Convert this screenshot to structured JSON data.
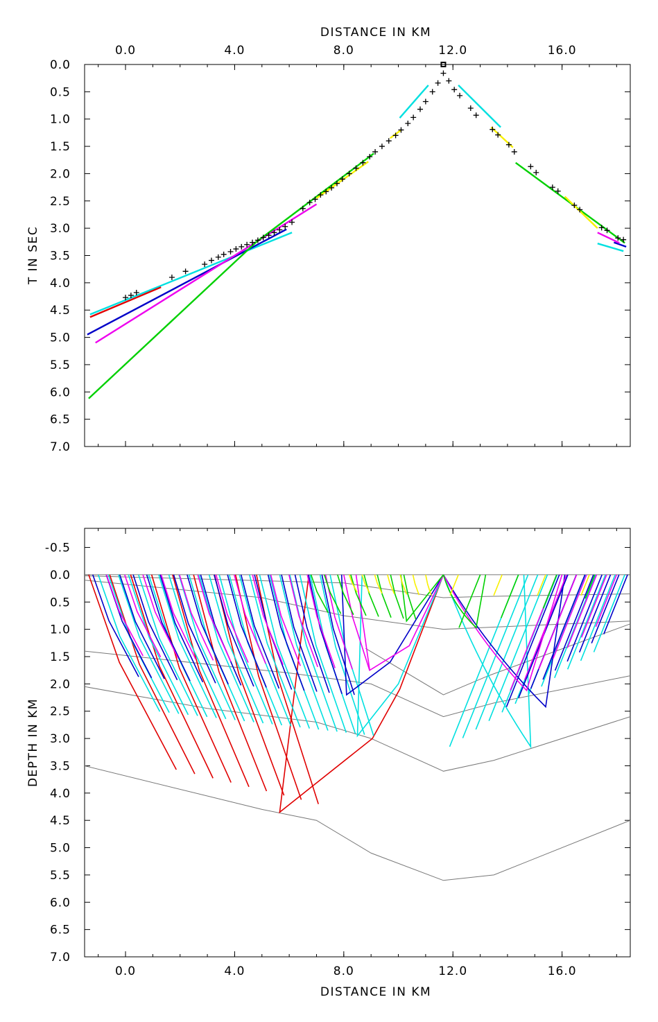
{
  "chart_data": [
    {
      "type": "scatter",
      "panel": "travel-time",
      "xlabel": "DISTANCE IN KM",
      "ylabel": "T IN SEC",
      "xlim": [
        -1.5,
        18.5
      ],
      "ylim": [
        7.0,
        0.0
      ],
      "x_axis_position": "top",
      "x_ticks": [
        "0.0",
        "4.0",
        "8.0",
        "12.0",
        "16.0"
      ],
      "y_ticks": [
        "0.0",
        "0.5",
        "1.0",
        "1.5",
        "2.0",
        "2.5",
        "3.0",
        "3.5",
        "4.0",
        "4.5",
        "5.0",
        "5.5",
        "6.0",
        "6.5",
        "7.0"
      ],
      "source_marker": {
        "x": 11.65,
        "y": 0.0
      },
      "picks": [
        [
          0.0,
          4.27
        ],
        [
          0.2,
          4.23
        ],
        [
          0.4,
          4.18
        ],
        [
          1.7,
          3.9
        ],
        [
          2.2,
          3.79
        ],
        [
          2.9,
          3.66
        ],
        [
          3.15,
          3.59
        ],
        [
          3.4,
          3.53
        ],
        [
          3.6,
          3.48
        ],
        [
          3.85,
          3.43
        ],
        [
          4.05,
          3.38
        ],
        [
          4.25,
          3.34
        ],
        [
          4.45,
          3.3
        ],
        [
          4.65,
          3.26
        ],
        [
          4.85,
          3.22
        ],
        [
          5.05,
          3.17
        ],
        [
          5.25,
          3.13
        ],
        [
          5.45,
          3.08
        ],
        [
          5.65,
          3.03
        ],
        [
          5.85,
          2.97
        ],
        [
          6.1,
          2.89
        ],
        [
          6.5,
          2.64
        ],
        [
          6.75,
          2.53
        ],
        [
          6.95,
          2.47
        ],
        [
          7.15,
          2.39
        ],
        [
          7.35,
          2.33
        ],
        [
          7.55,
          2.26
        ],
        [
          7.75,
          2.18
        ],
        [
          7.95,
          2.1
        ],
        [
          8.2,
          2.0
        ],
        [
          8.45,
          1.9
        ],
        [
          8.7,
          1.8
        ],
        [
          8.95,
          1.69
        ],
        [
          9.15,
          1.6
        ],
        [
          9.4,
          1.5
        ],
        [
          9.65,
          1.4
        ],
        [
          9.9,
          1.3
        ],
        [
          10.1,
          1.2
        ],
        [
          10.35,
          1.08
        ],
        [
          10.55,
          0.97
        ],
        [
          10.8,
          0.82
        ],
        [
          11.0,
          0.68
        ],
        [
          11.25,
          0.5
        ],
        [
          11.45,
          0.34
        ],
        [
          11.65,
          0.16
        ],
        [
          11.85,
          0.3
        ],
        [
          12.05,
          0.46
        ],
        [
          12.25,
          0.57
        ],
        [
          12.65,
          0.8
        ],
        [
          12.85,
          0.93
        ],
        [
          13.45,
          1.19
        ],
        [
          13.65,
          1.29
        ],
        [
          14.05,
          1.47
        ],
        [
          14.25,
          1.6
        ],
        [
          14.85,
          1.87
        ],
        [
          15.05,
          1.98
        ],
        [
          15.65,
          2.25
        ],
        [
          15.85,
          2.32
        ],
        [
          16.45,
          2.58
        ],
        [
          16.65,
          2.66
        ],
        [
          17.45,
          2.99
        ],
        [
          17.65,
          3.04
        ],
        [
          18.05,
          3.18
        ],
        [
          18.25,
          3.21
        ]
      ],
      "series": [
        {
          "color": "#00e0e0",
          "segments": [
            [
              [
                -1.3,
                4.58
              ],
              [
                6.1,
                3.08
              ]
            ],
            [
              [
                10.05,
                0.98
              ],
              [
                10.8,
                0.55
              ],
              [
                11.1,
                0.38
              ]
            ],
            [
              [
                12.2,
                0.38
              ],
              [
                13.75,
                1.15
              ]
            ],
            [
              [
                17.3,
                3.28
              ],
              [
                18.25,
                3.42
              ]
            ]
          ]
        },
        {
          "color": "#e00000",
          "segments": [
            [
              [
                -1.3,
                4.63
              ],
              [
                1.3,
                4.08
              ]
            ]
          ]
        },
        {
          "color": "#0000c8",
          "segments": [
            [
              [
                -1.4,
                4.95
              ],
              [
                5.9,
                3.02
              ]
            ],
            [
              [
                17.9,
                3.26
              ],
              [
                18.35,
                3.34
              ]
            ]
          ]
        },
        {
          "color": "#ee00ee",
          "segments": [
            [
              [
                -1.1,
                5.1
              ],
              [
                7.0,
                2.56
              ]
            ],
            [
              [
                17.3,
                3.08
              ],
              [
                18.1,
                3.27
              ]
            ]
          ]
        },
        {
          "color": "#00d000",
          "segments": [
            [
              [
                -1.35,
                6.12
              ],
              [
                4.8,
                3.25
              ],
              [
                9.1,
                1.63
              ]
            ],
            [
              [
                14.3,
                1.8
              ],
              [
                18.3,
                3.27
              ]
            ]
          ]
        },
        {
          "color": "#f8f000",
          "segments": [
            [
              [
                7.0,
                2.45
              ],
              [
                8.9,
                1.78
              ]
            ],
            [
              [
                9.7,
                1.35
              ],
              [
                10.1,
                1.2
              ]
            ],
            [
              [
                13.4,
                1.15
              ],
              [
                14.2,
                1.52
              ]
            ],
            [
              [
                16.1,
                2.42
              ],
              [
                17.3,
                3.0
              ]
            ]
          ]
        }
      ]
    },
    {
      "type": "line",
      "panel": "ray-diagram",
      "xlabel": "DISTANCE IN KM",
      "ylabel": "DEPTH IN KM",
      "xlim": [
        -1.5,
        18.5
      ],
      "ylim": [
        7.0,
        -0.85
      ],
      "x_axis_position": "bottom",
      "x_ticks": [
        "0.0",
        "4.0",
        "8.0",
        "12.0",
        "16.0"
      ],
      "y_ticks": [
        "-0.5",
        "0.0",
        "0.5",
        "1.0",
        "1.5",
        "2.0",
        "2.5",
        "3.0",
        "3.5",
        "4.0",
        "4.5",
        "5.0",
        "5.5",
        "6.0",
        "6.5",
        "7.0"
      ],
      "source": {
        "x": 11.65,
        "y": 0.0
      },
      "interfaces": [
        [
          [
            -1.5,
            0.0
          ],
          [
            18.5,
            0.0
          ]
        ],
        [
          [
            -1.5,
            0.02
          ],
          [
            8.0,
            0.15
          ],
          [
            11.65,
            0.42
          ],
          [
            13.0,
            0.4
          ],
          [
            18.5,
            0.35
          ]
        ],
        [
          [
            -1.5,
            0.1
          ],
          [
            5.0,
            0.42
          ],
          [
            8.0,
            0.75
          ],
          [
            11.65,
            1.0
          ],
          [
            18.5,
            0.85
          ]
        ],
        [
          [
            -1.5,
            1.4
          ],
          [
            6.0,
            1.8
          ],
          [
            9.0,
            2.0
          ],
          [
            11.65,
            2.6
          ],
          [
            13.5,
            2.35
          ],
          [
            18.5,
            1.85
          ]
        ],
        [
          [
            -1.5,
            2.05
          ],
          [
            3.0,
            2.45
          ],
          [
            7.0,
            2.7
          ],
          [
            9.0,
            3.0
          ],
          [
            11.65,
            3.6
          ],
          [
            13.5,
            3.4
          ],
          [
            18.5,
            2.6
          ]
        ],
        [
          [
            -1.5,
            3.5
          ],
          [
            5.0,
            4.3
          ],
          [
            7.0,
            4.5
          ],
          [
            9.0,
            5.1
          ],
          [
            11.65,
            5.6
          ],
          [
            13.5,
            5.5
          ],
          [
            18.5,
            4.5
          ]
        ],
        [
          [
            8.8,
            1.35
          ],
          [
            11.65,
            2.2
          ],
          [
            13.3,
            1.85
          ],
          [
            18.5,
            0.9
          ]
        ]
      ],
      "ray_families": [
        {
          "color": "#e00000",
          "depth": 4.2,
          "x_start": -1.35,
          "x_end": 4.8,
          "count": 9,
          "apex": [
            5.65,
            4.35
          ],
          "return": [
            [
              9.05,
              3.0
            ],
            [
              10.05,
              2.1
            ],
            [
              11.65,
              0.0
            ]
          ]
        },
        {
          "color": "#00e0e0",
          "depth": 2.95,
          "x_start": -1.0,
          "x_end": 7.5,
          "count": 24,
          "apex": [
            8.5,
            2.95
          ],
          "return": [
            [
              10.0,
              2.0
            ],
            [
              11.65,
              0.0
            ]
          ],
          "right_apex": [
            14.85,
            3.15
          ],
          "right_start": [
            14.4,
            18.3
          ]
        },
        {
          "color": "#0000c8",
          "depth": 2.2,
          "x_start": -1.2,
          "x_end": 7.2,
          "count": 18,
          "apex": [
            8.1,
            2.2
          ],
          "return": [
            [
              9.7,
              1.6
            ],
            [
              11.65,
              0.0
            ]
          ],
          "right_apex": [
            15.4,
            2.42
          ],
          "right_start": [
            15.9,
            18.4
          ]
        },
        {
          "color": "#ee00ee",
          "depth": 1.75,
          "x_start": -0.7,
          "x_end": 8.0,
          "count": 14,
          "apex": [
            8.95,
            1.75
          ],
          "return": [
            [
              10.4,
              1.3
            ],
            [
              11.65,
              0.0
            ]
          ],
          "right_apex": [
            14.7,
            2.12
          ],
          "right_start": [
            15.8,
            18.0
          ]
        },
        {
          "color": "#00d000",
          "depth": 0.82,
          "x_start": 6.8,
          "x_end": 10.2,
          "count": 8,
          "apex": [
            10.3,
            0.85
          ],
          "right_apex": [
            12.85,
            0.97
          ],
          "right_start": [
            13.0,
            17.2
          ]
        },
        {
          "color": "#f8f000",
          "depth": 0.38,
          "x_start": 8.2,
          "x_end": 11.0,
          "count": 7,
          "right_start": [
            12.2,
            17.0
          ]
        }
      ]
    }
  ]
}
